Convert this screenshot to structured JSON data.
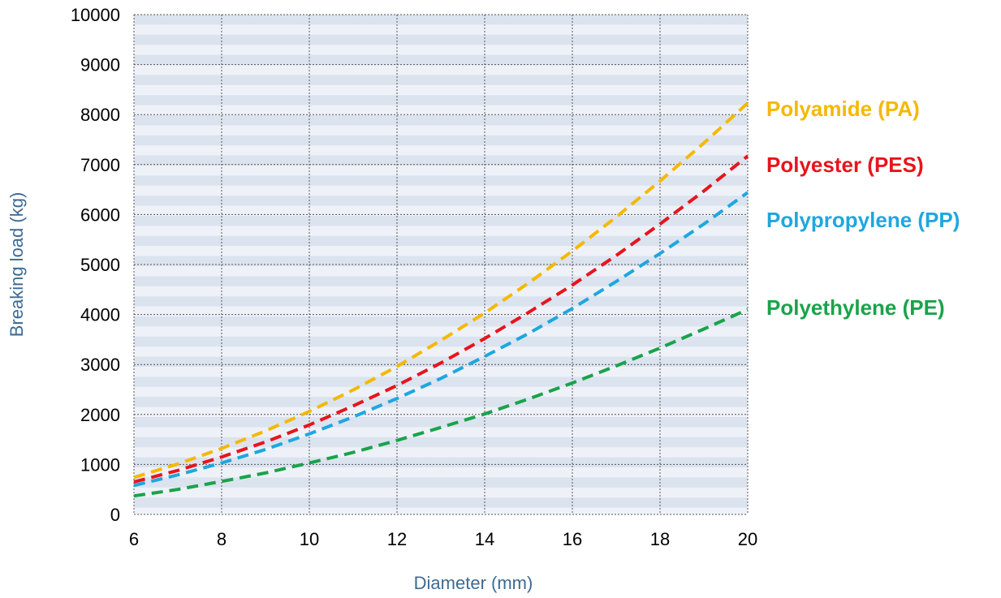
{
  "chart_data": {
    "type": "line",
    "title": "",
    "xlabel": "Diameter (mm)",
    "ylabel": "Breaking load (kg)",
    "xlim": [
      6,
      20
    ],
    "ylim": [
      0,
      10000
    ],
    "x_ticks": [
      6,
      8,
      10,
      12,
      14,
      16,
      18,
      20
    ],
    "y_ticks": [
      0,
      1000,
      2000,
      3000,
      4000,
      5000,
      6000,
      7000,
      8000,
      9000,
      10000
    ],
    "grid": true,
    "line_style": "dashed",
    "x": [
      6,
      7,
      8,
      9,
      10,
      11,
      12,
      13,
      14,
      15,
      16,
      17,
      18,
      19,
      20
    ],
    "series": [
      {
        "name": "Polyamide (PA)",
        "color": "#f5b800",
        "values": [
          740,
          1010,
          1320,
          1670,
          2060,
          2490,
          2960,
          3480,
          4030,
          4630,
          5270,
          5950,
          6670,
          7430,
          8230
        ]
      },
      {
        "name": "Polyester (PES)",
        "color": "#e8141c",
        "values": [
          650,
          880,
          1150,
          1450,
          1790,
          2170,
          2580,
          3030,
          3520,
          4040,
          4590,
          5180,
          5810,
          6470,
          7170
        ]
      },
      {
        "name": "Polypropylene (PP)",
        "color": "#1ea7e0",
        "values": [
          580,
          790,
          1030,
          1300,
          1610,
          1950,
          2320,
          2720,
          3160,
          3620,
          4120,
          4660,
          5220,
          5810,
          6440
        ]
      },
      {
        "name": "Polyethylene (PE)",
        "color": "#1aa34a",
        "values": [
          370,
          500,
          660,
          830,
          1030,
          1240,
          1480,
          1740,
          2010,
          2310,
          2630,
          2970,
          3330,
          3710,
          4100
        ]
      }
    ]
  }
}
